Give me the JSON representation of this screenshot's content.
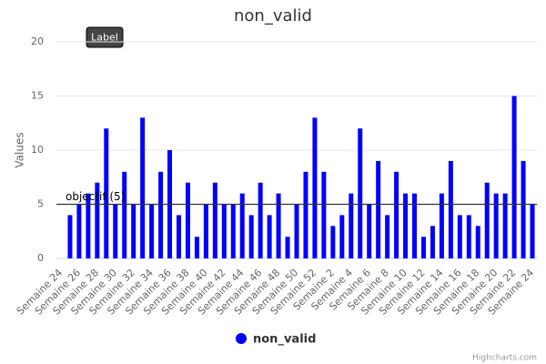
{
  "chart_data": {
    "type": "bar",
    "title": "non_valid",
    "y_axis_label": "Values",
    "annotation": "Label",
    "credits": "Highcharts.com",
    "categories": [
      "Semaine 24",
      null,
      "Semaine 26",
      null,
      "Semaine 28",
      null,
      "Semaine 30",
      null,
      "Semaine 32",
      null,
      "Semaine 34",
      null,
      "Semaine 36",
      null,
      "Semaine 38",
      null,
      "Semaine 40",
      null,
      "Semaine 42",
      null,
      "Semaine 44",
      null,
      "Semaine 46",
      null,
      "Semaine 48",
      null,
      "Semaine 50",
      null,
      "Semaine 52",
      null,
      "Semaine 2",
      null,
      "Semaine 4",
      null,
      "Semaine 6",
      null,
      "Semaine 8",
      null,
      "Semaine 10",
      null,
      "Semaine 12",
      null,
      "Semaine 14",
      null,
      "Semaine 16",
      null,
      "Semaine 18",
      null,
      "Semaine 20",
      null,
      "Semaine 22",
      null,
      "Semaine 24"
    ],
    "series": [
      {
        "name": "non_valid",
        "color": "#0000ff",
        "values": [
          0,
          4,
          5,
          6,
          7,
          12,
          5,
          8,
          5,
          13,
          5,
          8,
          10,
          4,
          7,
          2,
          5,
          7,
          5,
          5,
          6,
          4,
          7,
          4,
          6,
          2,
          5,
          8,
          13,
          8,
          3,
          4,
          6,
          12,
          5,
          9,
          4,
          8,
          6,
          6,
          2,
          3,
          6,
          9,
          4,
          4,
          3,
          7,
          6,
          6,
          15,
          9,
          5
        ]
      }
    ],
    "plot_lines": [
      {
        "value": 5,
        "label": "objectif (5)"
      }
    ],
    "ylim": [
      0,
      20
    ],
    "yticks": [
      0,
      5,
      10,
      15,
      20
    ],
    "grid": true,
    "legend": "bottom"
  }
}
